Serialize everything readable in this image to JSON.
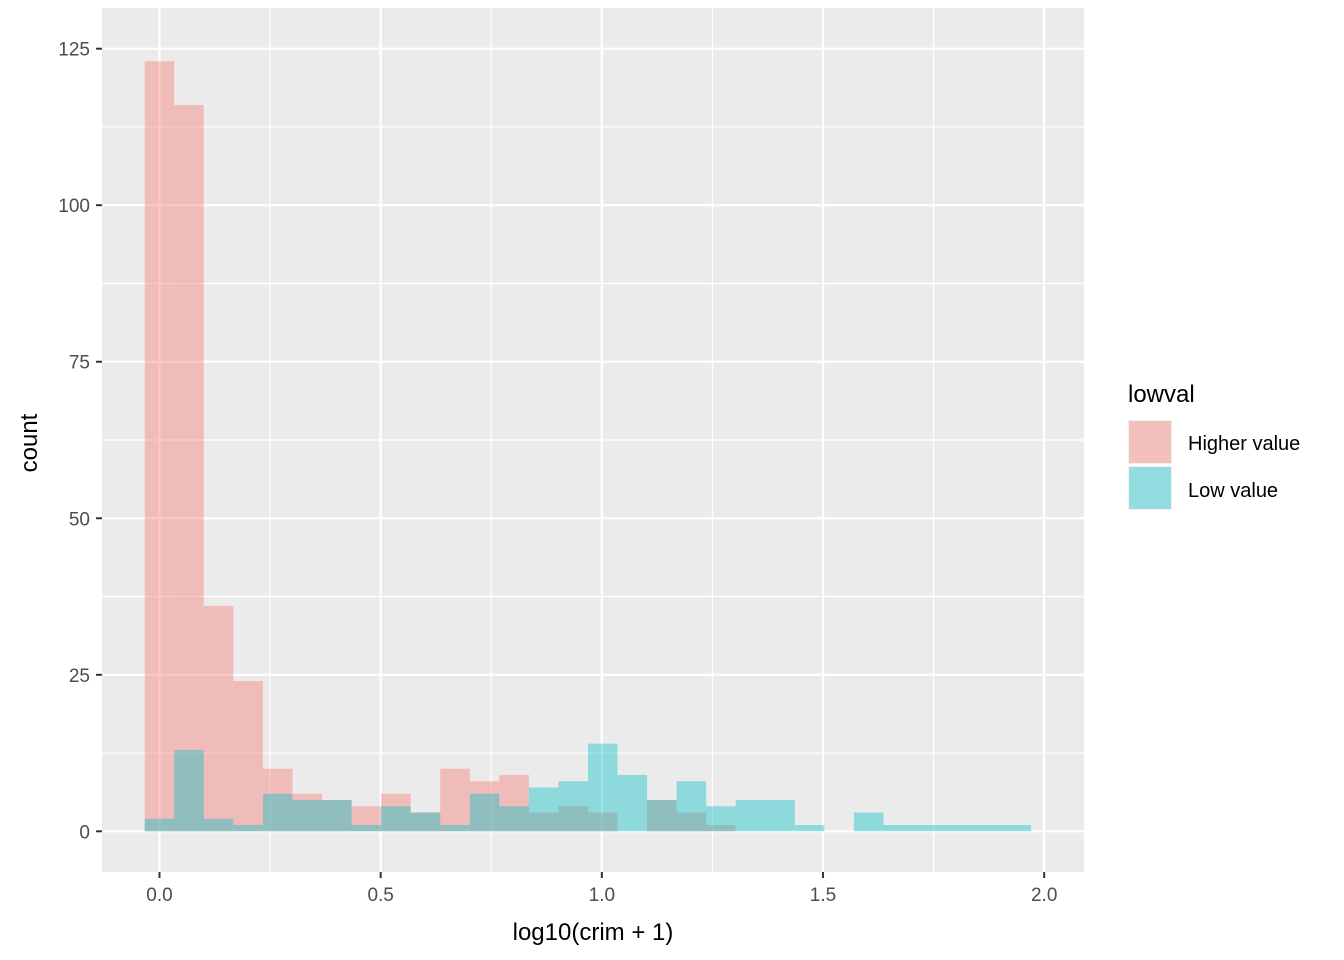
{
  "chart_data": {
    "type": "bar",
    "xlabel": "log10(crim + 1)",
    "ylabel": "count",
    "xlim": [
      -0.13,
      2.09
    ],
    "ylim": [
      -6.5,
      131.5
    ],
    "x_ticks": [
      0.0,
      0.5,
      1.0,
      1.5,
      2.0
    ],
    "x_tick_labels": [
      "0.0",
      "0.5",
      "1.0",
      "1.5",
      "2.0"
    ],
    "y_ticks": [
      0,
      25,
      50,
      75,
      100,
      125
    ],
    "y_tick_labels": [
      "0",
      "25",
      "50",
      "75",
      "100",
      "125"
    ],
    "grid": true,
    "legend": {
      "title": "lowval",
      "position": "right"
    },
    "bin_edges": [
      -0.0334,
      0.0334,
      0.1002,
      0.167,
      0.2338,
      0.3006,
      0.3674,
      0.4342,
      0.501,
      0.5678,
      0.6346,
      0.7014,
      0.7682,
      0.835,
      0.9018,
      0.9686,
      1.0354,
      1.1022,
      1.169,
      1.2358,
      1.3026,
      1.3694,
      1.4362,
      1.503,
      1.5698,
      1.6366,
      1.7034,
      1.7702,
      1.837,
      1.9038,
      1.9706
    ],
    "series": [
      {
        "name": "Higher value",
        "color": "#F8766D",
        "values": [
          123,
          116,
          36,
          24,
          10,
          6,
          5,
          4,
          6,
          3,
          10,
          8,
          9,
          3,
          4,
          3,
          0,
          5,
          3,
          1,
          0,
          0,
          0,
          0,
          0,
          0,
          0,
          0,
          0,
          0
        ]
      },
      {
        "name": "Low value",
        "color": "#00BFC4",
        "values": [
          2,
          13,
          2,
          1,
          6,
          5,
          5,
          1,
          4,
          3,
          1,
          6,
          4,
          7,
          8,
          14,
          9,
          5,
          8,
          4,
          5,
          5,
          1,
          0,
          3,
          1,
          1,
          1,
          1,
          1
        ]
      }
    ]
  }
}
